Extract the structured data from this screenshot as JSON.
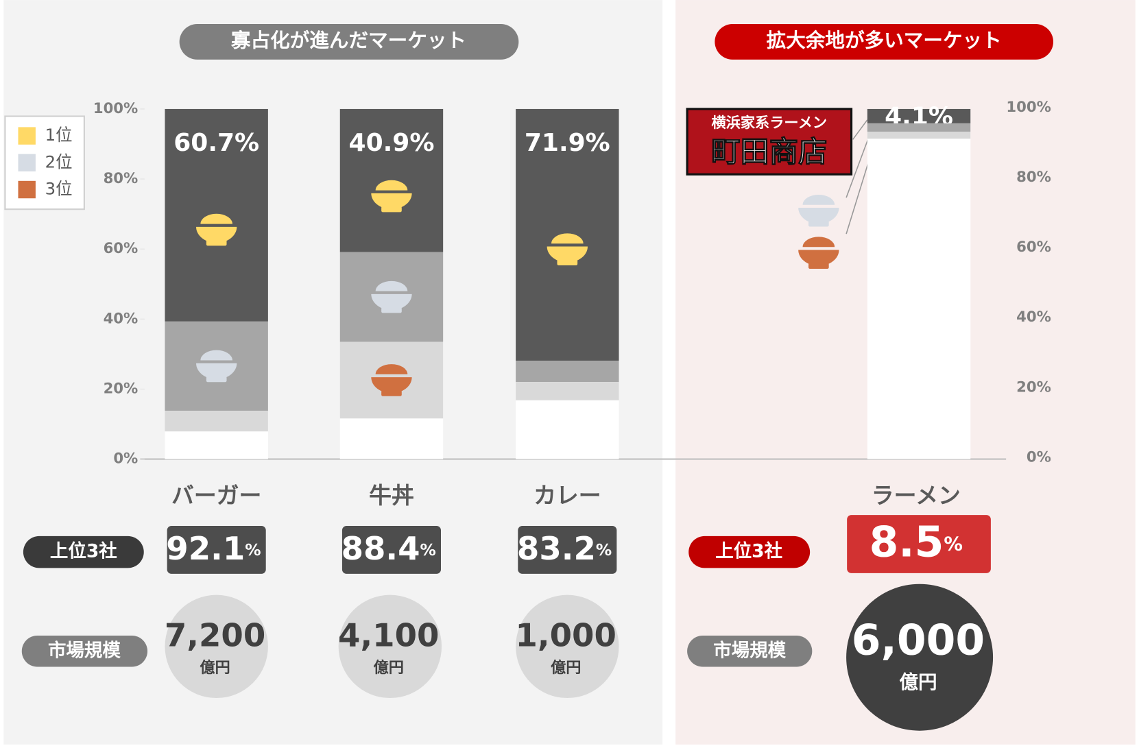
{
  "panels": {
    "left_title": "寡占化が進んだマーケット",
    "right_title": "拡大余地が多いマーケット"
  },
  "logo": {
    "line1": "横浜家系ラーメン",
    "line2": "町田商店"
  },
  "chart_data": {
    "type": "bar",
    "stacked": true,
    "categories": [
      "バーガー",
      "牛丼",
      "カレー",
      "ラーメン"
    ],
    "series": [
      {
        "name": "1位",
        "color": "#595959",
        "icon_color": "#ffd966",
        "values": [
          60.7,
          40.9,
          71.9,
          4.1
        ],
        "value_labels": [
          "60.7%",
          "40.9%",
          "71.9%",
          "4.1%"
        ]
      },
      {
        "name": "2位",
        "color": "#a6a6a6",
        "icon_color": "#d6dce4",
        "values": [
          25.5,
          25.6,
          6.1,
          2.4
        ]
      },
      {
        "name": "3位",
        "color": "#d9d9d9",
        "icon_color": "#d07040",
        "values": [
          5.9,
          21.9,
          5.2,
          2.0
        ]
      }
    ],
    "ylim": [
      0,
      100
    ],
    "yticks": [
      {
        "value": 0,
        "label": "0%"
      },
      {
        "value": 20,
        "label": "20%"
      },
      {
        "value": 40,
        "label": "40%"
      },
      {
        "value": 60,
        "label": "60%"
      },
      {
        "value": 80,
        "label": "80%"
      },
      {
        "value": 100,
        "label": "100%"
      }
    ],
    "legend": "upper left"
  },
  "summary": {
    "top3_title": "上位3社",
    "top3_share": [
      "92.1",
      "88.4",
      "83.2",
      "8.5"
    ],
    "top3_unit": "%",
    "market_title": "市場規模",
    "market_size": [
      "7,200",
      "4,100",
      "1,000",
      "6,000"
    ],
    "market_unit": "億円"
  }
}
